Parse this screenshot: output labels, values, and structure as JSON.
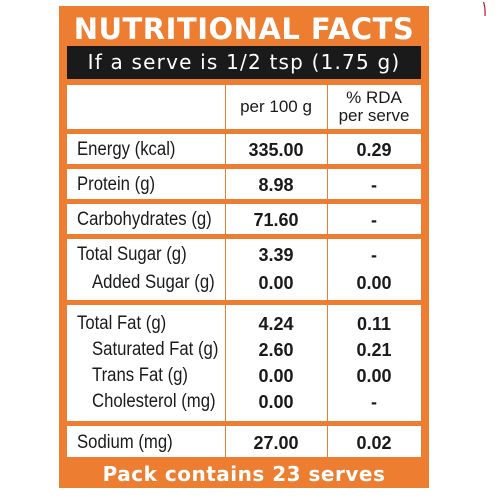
{
  "label": {
    "title": "NUTRITIONAL FACTS",
    "serving": "If a serve is 1/2 tsp (1.75 g)",
    "col_per100": "per 100 g",
    "col_rda_line1": "% RDA",
    "col_rda_line2": "per serve",
    "rows": [
      {
        "name": "Energy (kcal)",
        "per100": "335.00",
        "rda": "0.29"
      },
      {
        "name": "Protein (g)",
        "per100": "8.98",
        "rda": "-"
      },
      {
        "name": "Carbohydrates (g)",
        "per100": "71.60",
        "rda": "-"
      },
      {
        "name": "Total Sugar (g)",
        "per100": "3.39",
        "rda": "-"
      },
      {
        "name": "Added Sugar (g)",
        "per100": "0.00",
        "rda": "0.00"
      },
      {
        "name": "Total Fat (g)",
        "per100": "4.24",
        "rda": "0.11"
      },
      {
        "name": "Saturated Fat (g)",
        "per100": "2.60",
        "rda": "0.21"
      },
      {
        "name": "Trans Fat (g)",
        "per100": "0.00",
        "rda": "0.00"
      },
      {
        "name": "Cholesterol (mg)",
        "per100": "0.00",
        "rda": "-"
      },
      {
        "name": "Sodium (mg)",
        "per100": "27.00",
        "rda": "0.02"
      }
    ],
    "footer": "Pack contains 23 serves",
    "colors": {
      "orange": "#ed7d31",
      "dark": "#1a1a1a",
      "accent": "#c8102e"
    }
  }
}
